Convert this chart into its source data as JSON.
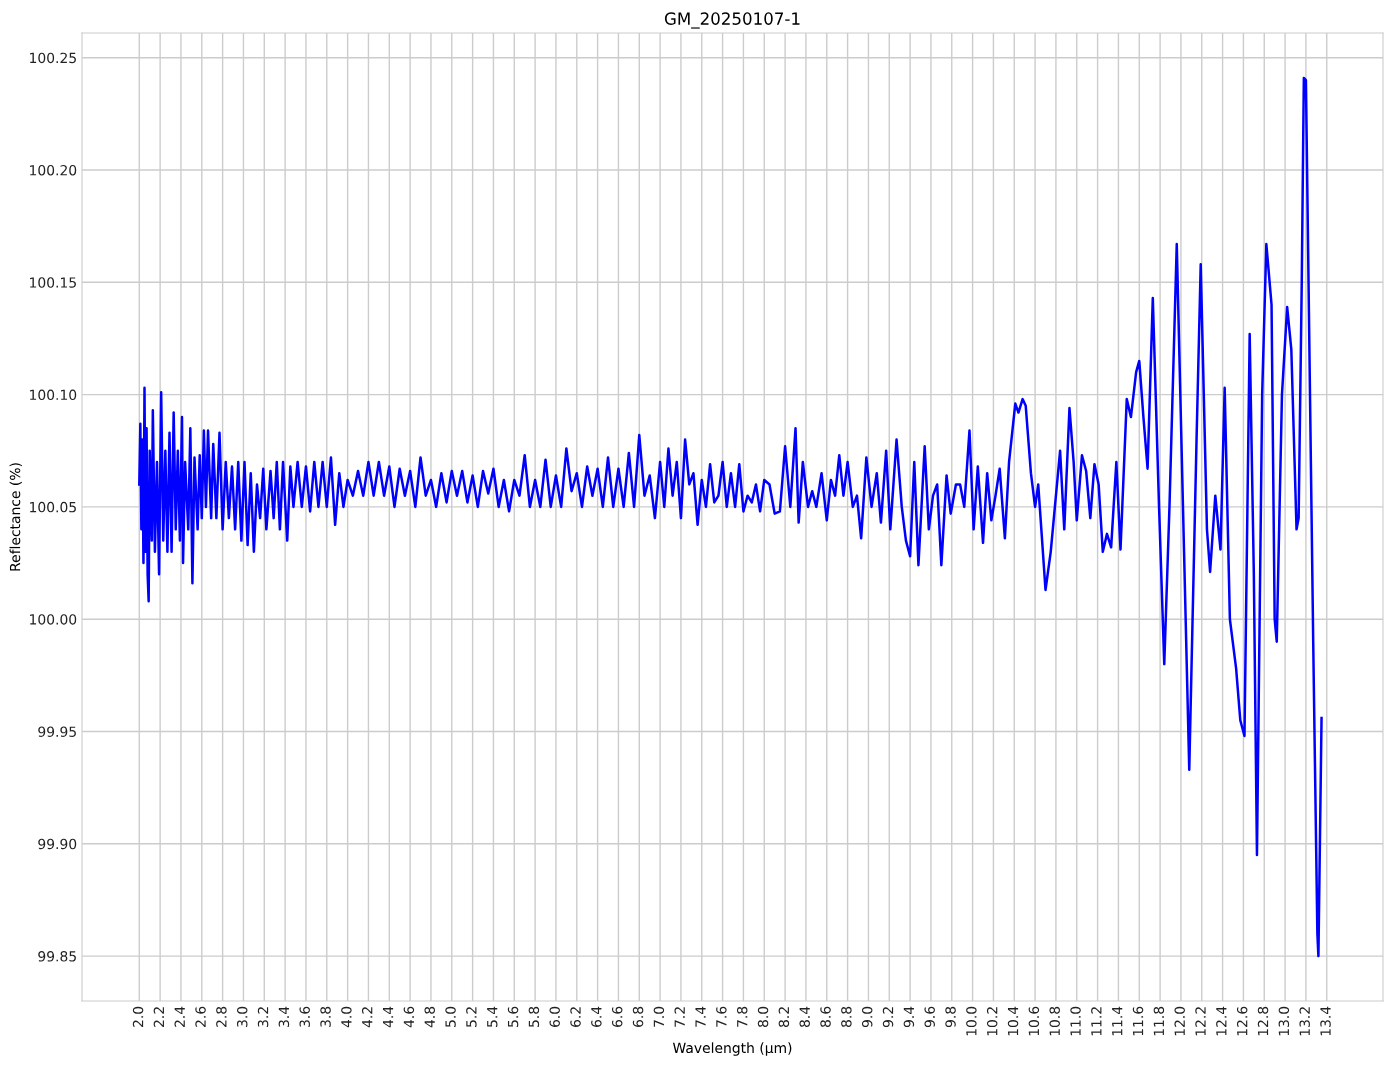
{
  "chart_data": {
    "type": "line",
    "title": "GM_20250107-1",
    "xlabel": "Wavelength (µm)",
    "ylabel": "Reflectance (%)",
    "grid": true,
    "xlim": [
      1.45,
      13.94
    ],
    "ylim": [
      99.83,
      100.261
    ],
    "xticks": [
      {
        "value": 2.0,
        "label": "2.0"
      },
      {
        "value": 2.2,
        "label": "2.2"
      },
      {
        "value": 2.4,
        "label": "2.4"
      },
      {
        "value": 2.6,
        "label": "2.6"
      },
      {
        "value": 2.8,
        "label": "2.8"
      },
      {
        "value": 3.0,
        "label": "3.0"
      },
      {
        "value": 3.2,
        "label": "3.2"
      },
      {
        "value": 3.4,
        "label": "3.4"
      },
      {
        "value": 3.6,
        "label": "3.6"
      },
      {
        "value": 3.8,
        "label": "3.8"
      },
      {
        "value": 4.0,
        "label": "4.0"
      },
      {
        "value": 4.2,
        "label": "4.2"
      },
      {
        "value": 4.4,
        "label": "4.4"
      },
      {
        "value": 4.6,
        "label": "4.6"
      },
      {
        "value": 4.8,
        "label": "4.8"
      },
      {
        "value": 5.0,
        "label": "5.0"
      },
      {
        "value": 5.2,
        "label": "5.2"
      },
      {
        "value": 5.4,
        "label": "5.4"
      },
      {
        "value": 5.6,
        "label": "5.6"
      },
      {
        "value": 5.8,
        "label": "5.8"
      },
      {
        "value": 6.0,
        "label": "6.0"
      },
      {
        "value": 6.2,
        "label": "6.2"
      },
      {
        "value": 6.4,
        "label": "6.4"
      },
      {
        "value": 6.6,
        "label": "6.6"
      },
      {
        "value": 6.8,
        "label": "6.8"
      },
      {
        "value": 7.0,
        "label": "7.0"
      },
      {
        "value": 7.2,
        "label": "7.2"
      },
      {
        "value": 7.4,
        "label": "7.4"
      },
      {
        "value": 7.6,
        "label": "7.6"
      },
      {
        "value": 7.8,
        "label": "7.8"
      },
      {
        "value": 8.0,
        "label": "8.0"
      },
      {
        "value": 8.2,
        "label": "8.2"
      },
      {
        "value": 8.4,
        "label": "8.4"
      },
      {
        "value": 8.6,
        "label": "8.6"
      },
      {
        "value": 8.8,
        "label": "8.8"
      },
      {
        "value": 9.0,
        "label": "9.0"
      },
      {
        "value": 9.2,
        "label": "9.2"
      },
      {
        "value": 9.4,
        "label": "9.4"
      },
      {
        "value": 9.6,
        "label": "9.6"
      },
      {
        "value": 9.8,
        "label": "9.8"
      },
      {
        "value": 10.0,
        "label": "10.0"
      },
      {
        "value": 10.2,
        "label": "10.2"
      },
      {
        "value": 10.4,
        "label": "10.4"
      },
      {
        "value": 10.6,
        "label": "10.6"
      },
      {
        "value": 10.8,
        "label": "10.8"
      },
      {
        "value": 11.0,
        "label": "11.0"
      },
      {
        "value": 11.2,
        "label": "11.2"
      },
      {
        "value": 11.4,
        "label": "11.4"
      },
      {
        "value": 11.6,
        "label": "11.6"
      },
      {
        "value": 11.8,
        "label": "11.8"
      },
      {
        "value": 12.0,
        "label": "12.0"
      },
      {
        "value": 12.2,
        "label": "12.2"
      },
      {
        "value": 12.4,
        "label": "12.4"
      },
      {
        "value": 12.6,
        "label": "12.6"
      },
      {
        "value": 12.8,
        "label": "12.8"
      },
      {
        "value": 13.0,
        "label": "13.0"
      },
      {
        "value": 13.2,
        "label": "13.2"
      },
      {
        "value": 13.4,
        "label": "13.4"
      }
    ],
    "yticks": [
      {
        "value": 99.85,
        "label": "99.85"
      },
      {
        "value": 99.9,
        "label": "99.90"
      },
      {
        "value": 99.95,
        "label": "99.95"
      },
      {
        "value": 100.0,
        "label": "100.00"
      },
      {
        "value": 100.05,
        "label": "100.05"
      },
      {
        "value": 100.1,
        "label": "100.10"
      },
      {
        "value": 100.15,
        "label": "100.15"
      },
      {
        "value": 100.2,
        "label": "100.20"
      },
      {
        "value": 100.25,
        "label": "100.25"
      }
    ],
    "series": [
      {
        "color": "#0000ff",
        "line_style": "solid",
        "marker": "none",
        "x": [
          2.0,
          2.01,
          2.02,
          2.03,
          2.04,
          2.05,
          2.06,
          2.07,
          2.08,
          2.09,
          2.1,
          2.12,
          2.13,
          2.15,
          2.17,
          2.19,
          2.21,
          2.23,
          2.25,
          2.27,
          2.29,
          2.31,
          2.33,
          2.35,
          2.37,
          2.39,
          2.41,
          2.42,
          2.44,
          2.47,
          2.49,
          2.51,
          2.53,
          2.56,
          2.58,
          2.6,
          2.62,
          2.64,
          2.66,
          2.69,
          2.71,
          2.74,
          2.77,
          2.8,
          2.83,
          2.86,
          2.89,
          2.92,
          2.95,
          2.98,
          3.01,
          3.04,
          3.07,
          3.1,
          3.13,
          3.16,
          3.19,
          3.22,
          3.26,
          3.29,
          3.32,
          3.35,
          3.38,
          3.42,
          3.45,
          3.48,
          3.52,
          3.56,
          3.6,
          3.64,
          3.68,
          3.72,
          3.76,
          3.8,
          3.84,
          3.88,
          3.92,
          3.96,
          4.0,
          4.05,
          4.1,
          4.15,
          4.2,
          4.25,
          4.3,
          4.35,
          4.4,
          4.45,
          4.5,
          4.55,
          4.6,
          4.65,
          4.7,
          4.75,
          4.8,
          4.85,
          4.9,
          4.95,
          5.0,
          5.05,
          5.1,
          5.15,
          5.2,
          5.25,
          5.3,
          5.35,
          5.4,
          5.45,
          5.5,
          5.55,
          5.6,
          5.65,
          5.7,
          5.75,
          5.8,
          5.85,
          5.9,
          5.95,
          6.0,
          6.05,
          6.1,
          6.15,
          6.2,
          6.25,
          6.3,
          6.35,
          6.4,
          6.45,
          6.5,
          6.55,
          6.6,
          6.65,
          6.7,
          6.75,
          6.8,
          6.85,
          6.9,
          6.95,
          7.0,
          7.04,
          7.08,
          7.12,
          7.16,
          7.2,
          7.24,
          7.28,
          7.32,
          7.36,
          7.4,
          7.44,
          7.48,
          7.52,
          7.56,
          7.6,
          7.64,
          7.68,
          7.72,
          7.76,
          7.8,
          7.84,
          7.88,
          7.92,
          7.96,
          8.0,
          8.05,
          8.1,
          8.15,
          8.2,
          8.25,
          8.3,
          8.33,
          8.37,
          8.42,
          8.46,
          8.5,
          8.55,
          8.6,
          8.64,
          8.68,
          8.72,
          8.76,
          8.8,
          8.85,
          8.89,
          8.93,
          8.98,
          9.03,
          9.08,
          9.12,
          9.17,
          9.21,
          9.27,
          9.32,
          9.36,
          9.4,
          9.44,
          9.48,
          9.54,
          9.58,
          9.62,
          9.66,
          9.7,
          9.75,
          9.79,
          9.84,
          9.88,
          9.92,
          9.97,
          10.01,
          10.05,
          10.1,
          10.14,
          10.18,
          10.22,
          10.26,
          10.31,
          10.35,
          10.41,
          10.44,
          10.48,
          10.51,
          10.56,
          10.6,
          10.63,
          10.66,
          10.7,
          10.75,
          10.79,
          10.84,
          10.88,
          10.93,
          10.97,
          11.0,
          11.05,
          11.09,
          11.13,
          11.17,
          11.21,
          11.25,
          11.29,
          11.33,
          11.38,
          11.42,
          11.48,
          11.52,
          11.57,
          11.6,
          11.64,
          11.68,
          11.73,
          11.79,
          11.84,
          11.89,
          11.96,
          12.03,
          12.08,
          12.15,
          12.19,
          12.25,
          12.28,
          12.33,
          12.38,
          12.42,
          12.47,
          12.53,
          12.57,
          12.61,
          12.66,
          12.7,
          12.73,
          12.78,
          12.82,
          12.87,
          12.9,
          12.92,
          12.97,
          13.02,
          13.06,
          13.11,
          13.13,
          13.16,
          13.18,
          13.2,
          13.27,
          13.31,
          13.32,
          13.35
        ],
        "values": [
          100.06,
          100.087,
          100.04,
          100.08,
          100.025,
          100.103,
          100.03,
          100.085,
          100.02,
          100.008,
          100.075,
          100.035,
          100.093,
          100.03,
          100.07,
          100.02,
          100.101,
          100.035,
          100.075,
          100.03,
          100.083,
          100.03,
          100.092,
          100.04,
          100.075,
          100.035,
          100.09,
          100.025,
          100.07,
          100.04,
          100.085,
          100.016,
          100.072,
          100.04,
          100.073,
          100.045,
          100.084,
          100.05,
          100.084,
          100.045,
          100.078,
          100.045,
          100.083,
          100.04,
          100.07,
          100.045,
          100.068,
          100.04,
          100.07,
          100.035,
          100.07,
          100.033,
          100.065,
          100.03,
          100.06,
          100.045,
          100.067,
          100.04,
          100.066,
          100.045,
          100.07,
          100.04,
          100.07,
          100.035,
          100.068,
          100.05,
          100.07,
          100.05,
          100.068,
          100.048,
          100.07,
          100.05,
          100.07,
          100.05,
          100.072,
          100.042,
          100.065,
          100.05,
          100.062,
          100.055,
          100.066,
          100.055,
          100.07,
          100.055,
          100.07,
          100.055,
          100.068,
          100.05,
          100.067,
          100.055,
          100.066,
          100.05,
          100.072,
          100.055,
          100.062,
          100.05,
          100.065,
          100.052,
          100.066,
          100.055,
          100.066,
          100.052,
          100.064,
          100.05,
          100.066,
          100.056,
          100.067,
          100.05,
          100.062,
          100.048,
          100.062,
          100.055,
          100.073,
          100.05,
          100.062,
          100.05,
          100.071,
          100.05,
          100.064,
          100.05,
          100.076,
          100.057,
          100.065,
          100.05,
          100.068,
          100.055,
          100.067,
          100.05,
          100.072,
          100.05,
          100.067,
          100.05,
          100.074,
          100.05,
          100.082,
          100.055,
          100.064,
          100.045,
          100.07,
          100.05,
          100.076,
          100.055,
          100.07,
          100.045,
          100.08,
          100.06,
          100.065,
          100.042,
          100.062,
          100.05,
          100.069,
          100.052,
          100.055,
          100.07,
          100.05,
          100.065,
          100.05,
          100.069,
          100.048,
          100.055,
          100.052,
          100.06,
          100.048,
          100.062,
          100.06,
          100.047,
          100.048,
          100.077,
          100.05,
          100.085,
          100.043,
          100.07,
          100.05,
          100.057,
          100.05,
          100.065,
          100.044,
          100.062,
          100.055,
          100.073,
          100.055,
          100.07,
          100.05,
          100.055,
          100.036,
          100.072,
          100.05,
          100.065,
          100.043,
          100.075,
          100.04,
          100.08,
          100.05,
          100.035,
          100.028,
          100.07,
          100.024,
          100.077,
          100.04,
          100.055,
          100.06,
          100.024,
          100.064,
          100.047,
          100.06,
          100.06,
          100.05,
          100.084,
          100.04,
          100.068,
          100.034,
          100.065,
          100.044,
          100.055,
          100.067,
          100.036,
          100.07,
          100.096,
          100.092,
          100.098,
          100.095,
          100.065,
          100.05,
          100.06,
          100.04,
          100.013,
          100.03,
          100.05,
          100.075,
          100.04,
          100.094,
          100.07,
          100.044,
          100.073,
          100.066,
          100.045,
          100.069,
          100.06,
          100.03,
          100.038,
          100.032,
          100.07,
          100.031,
          100.098,
          100.09,
          100.11,
          100.115,
          100.09,
          100.067,
          100.143,
          100.05,
          99.98,
          100.05,
          100.167,
          100.03,
          99.933,
          100.08,
          100.158,
          100.04,
          100.021,
          100.055,
          100.031,
          100.103,
          100.0,
          99.978,
          99.955,
          99.948,
          100.127,
          100.02,
          99.895,
          100.1,
          100.167,
          100.14,
          100.0,
          99.99,
          100.1,
          100.139,
          100.12,
          100.04,
          100.045,
          100.15,
          100.241,
          100.24,
          99.99,
          99.86,
          99.85,
          99.956
        ]
      }
    ]
  }
}
